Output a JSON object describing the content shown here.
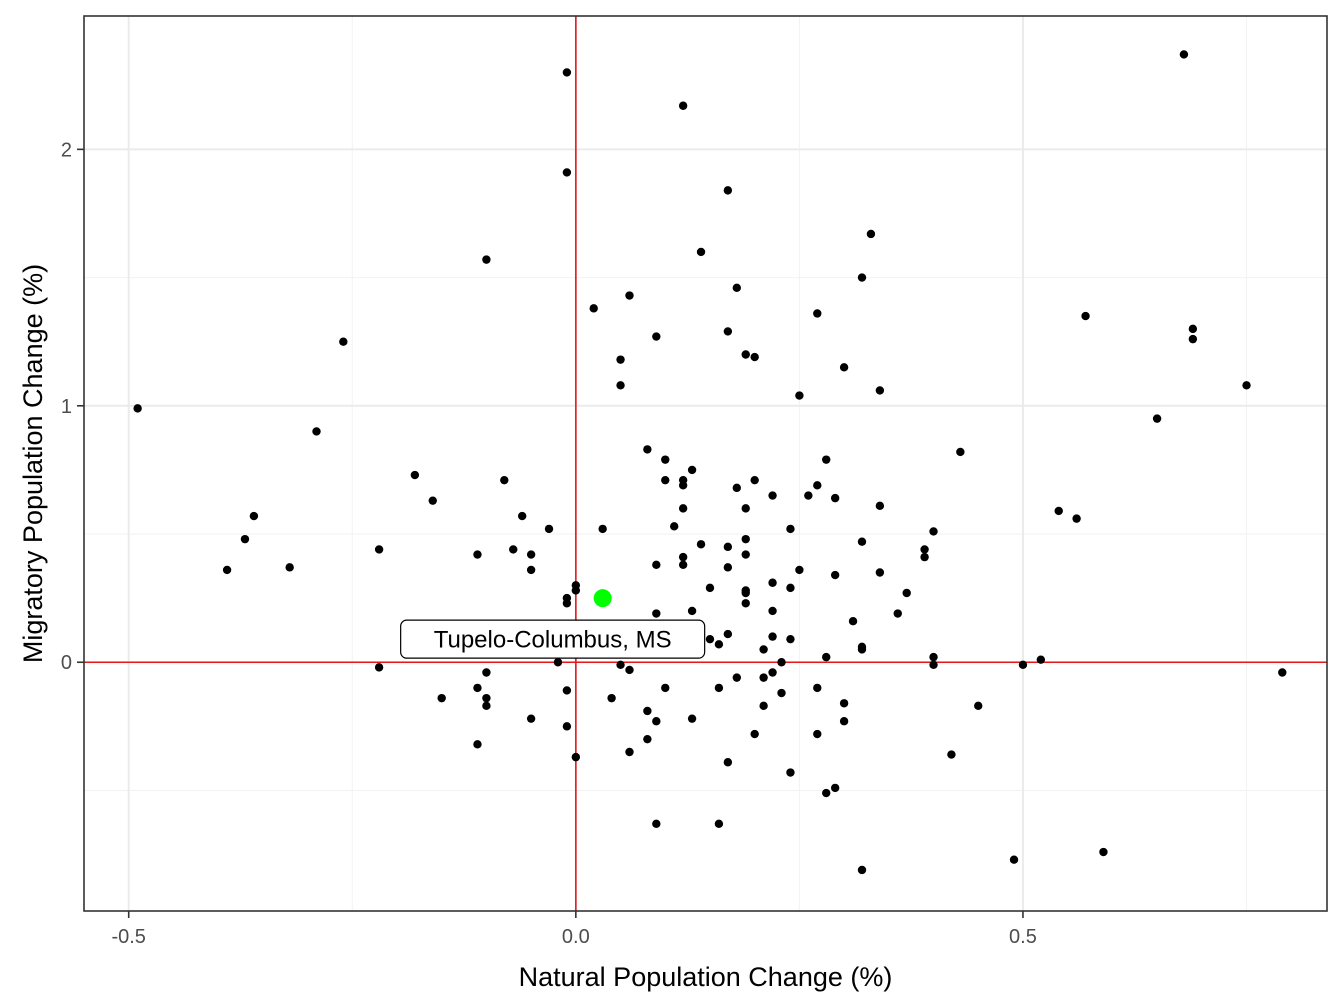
{
  "chart_data": {
    "type": "scatter",
    "title": "",
    "xlabel": "Natural Population Change (%)",
    "ylabel": "Migratory Population Change (%)",
    "xlim": [
      -0.55,
      0.84
    ],
    "ylim": [
      -0.97,
      2.52
    ],
    "x_ticks": [
      -0.5,
      0.0,
      0.5
    ],
    "x_tick_labels": [
      "-0.5",
      "0.0",
      "0.5"
    ],
    "y_ticks": [
      0,
      1,
      2
    ],
    "y_tick_labels": [
      "0",
      "1",
      "2"
    ],
    "x_minor_ticks": [
      -0.25,
      0.25,
      0.75
    ],
    "y_minor_ticks": [
      -0.5,
      0.5,
      1.5
    ],
    "grid": true,
    "reference_lines": {
      "x": 0,
      "y": 0,
      "color": "#e41a1c"
    },
    "point_color": "#000000",
    "highlight": {
      "label": "Tupelo-Columbus, MS",
      "x": 0.03,
      "y": 0.25,
      "color": "#00ff00"
    },
    "points": [
      {
        "x": -0.49,
        "y": 0.99
      },
      {
        "x": -0.26,
        "y": 1.25
      },
      {
        "x": -0.29,
        "y": 0.9
      },
      {
        "x": -0.39,
        "y": 0.36
      },
      {
        "x": -0.37,
        "y": 0.48
      },
      {
        "x": -0.36,
        "y": 0.57
      },
      {
        "x": -0.32,
        "y": 0.37
      },
      {
        "x": -0.22,
        "y": 0.44
      },
      {
        "x": -0.22,
        "y": -0.02
      },
      {
        "x": -0.18,
        "y": 0.73
      },
      {
        "x": -0.16,
        "y": 0.63
      },
      {
        "x": -0.15,
        "y": -0.14
      },
      {
        "x": -0.19,
        "y": 0.03
      },
      {
        "x": -0.1,
        "y": 1.57
      },
      {
        "x": -0.11,
        "y": 0.42
      },
      {
        "x": -0.11,
        "y": -0.1
      },
      {
        "x": -0.1,
        "y": -0.04
      },
      {
        "x": -0.1,
        "y": -0.14
      },
      {
        "x": -0.1,
        "y": -0.17
      },
      {
        "x": -0.11,
        "y": -0.32
      },
      {
        "x": -0.08,
        "y": 0.71
      },
      {
        "x": -0.07,
        "y": 0.44
      },
      {
        "x": -0.06,
        "y": 0.57
      },
      {
        "x": -0.05,
        "y": 0.42
      },
      {
        "x": -0.05,
        "y": 0.36
      },
      {
        "x": -0.05,
        "y": -0.22
      },
      {
        "x": -0.03,
        "y": 0.52
      },
      {
        "x": -0.02,
        "y": 0.0
      },
      {
        "x": -0.01,
        "y": 2.3
      },
      {
        "x": -0.01,
        "y": 1.91
      },
      {
        "x": -0.01,
        "y": 0.25
      },
      {
        "x": -0.01,
        "y": 0.23
      },
      {
        "x": -0.01,
        "y": -0.11
      },
      {
        "x": -0.01,
        "y": -0.25
      },
      {
        "x": 0.0,
        "y": 0.3
      },
      {
        "x": 0.0,
        "y": 0.28
      },
      {
        "x": 0.0,
        "y": -0.37
      },
      {
        "x": 0.02,
        "y": 1.38
      },
      {
        "x": 0.03,
        "y": 0.52
      },
      {
        "x": 0.04,
        "y": -0.14
      },
      {
        "x": 0.05,
        "y": 1.18
      },
      {
        "x": 0.05,
        "y": 1.08
      },
      {
        "x": 0.05,
        "y": -0.01
      },
      {
        "x": 0.06,
        "y": 1.43
      },
      {
        "x": 0.06,
        "y": -0.03
      },
      {
        "x": 0.06,
        "y": -0.35
      },
      {
        "x": 0.08,
        "y": 0.83
      },
      {
        "x": 0.08,
        "y": -0.19
      },
      {
        "x": 0.08,
        "y": -0.3
      },
      {
        "x": 0.09,
        "y": 1.27
      },
      {
        "x": 0.09,
        "y": 0.38
      },
      {
        "x": 0.09,
        "y": 0.19
      },
      {
        "x": 0.09,
        "y": -0.23
      },
      {
        "x": 0.09,
        "y": -0.63
      },
      {
        "x": 0.1,
        "y": 0.79
      },
      {
        "x": 0.1,
        "y": 0.71
      },
      {
        "x": 0.1,
        "y": -0.1
      },
      {
        "x": 0.11,
        "y": 0.53
      },
      {
        "x": 0.12,
        "y": 2.17
      },
      {
        "x": 0.12,
        "y": 0.71
      },
      {
        "x": 0.12,
        "y": 0.69
      },
      {
        "x": 0.12,
        "y": 0.6
      },
      {
        "x": 0.12,
        "y": 0.41
      },
      {
        "x": 0.12,
        "y": 0.38
      },
      {
        "x": 0.13,
        "y": 0.75
      },
      {
        "x": 0.13,
        "y": 0.2
      },
      {
        "x": 0.13,
        "y": -0.22
      },
      {
        "x": 0.14,
        "y": 1.6
      },
      {
        "x": 0.14,
        "y": 0.46
      },
      {
        "x": 0.15,
        "y": 0.29
      },
      {
        "x": 0.15,
        "y": 0.09
      },
      {
        "x": 0.16,
        "y": 0.07
      },
      {
        "x": 0.16,
        "y": -0.1
      },
      {
        "x": 0.16,
        "y": -0.63
      },
      {
        "x": 0.17,
        "y": 1.84
      },
      {
        "x": 0.17,
        "y": 1.29
      },
      {
        "x": 0.17,
        "y": 0.45
      },
      {
        "x": 0.17,
        "y": 0.37
      },
      {
        "x": 0.17,
        "y": 0.11
      },
      {
        "x": 0.17,
        "y": -0.39
      },
      {
        "x": 0.18,
        "y": 1.46
      },
      {
        "x": 0.18,
        "y": 0.68
      },
      {
        "x": 0.18,
        "y": -0.06
      },
      {
        "x": 0.19,
        "y": 1.2
      },
      {
        "x": 0.19,
        "y": 0.6
      },
      {
        "x": 0.19,
        "y": 0.48
      },
      {
        "x": 0.19,
        "y": 0.42
      },
      {
        "x": 0.19,
        "y": 0.28
      },
      {
        "x": 0.19,
        "y": 0.27
      },
      {
        "x": 0.19,
        "y": 0.23
      },
      {
        "x": 0.2,
        "y": 1.19
      },
      {
        "x": 0.2,
        "y": 0.71
      },
      {
        "x": 0.2,
        "y": -0.28
      },
      {
        "x": 0.21,
        "y": 0.05
      },
      {
        "x": 0.21,
        "y": -0.06
      },
      {
        "x": 0.21,
        "y": -0.17
      },
      {
        "x": 0.22,
        "y": 0.65
      },
      {
        "x": 0.22,
        "y": 0.31
      },
      {
        "x": 0.22,
        "y": 0.2
      },
      {
        "x": 0.22,
        "y": 0.1
      },
      {
        "x": 0.22,
        "y": -0.04
      },
      {
        "x": 0.23,
        "y": 0.0
      },
      {
        "x": 0.23,
        "y": -0.12
      },
      {
        "x": 0.24,
        "y": 0.52
      },
      {
        "x": 0.24,
        "y": 0.29
      },
      {
        "x": 0.24,
        "y": 0.09
      },
      {
        "x": 0.24,
        "y": -0.43
      },
      {
        "x": 0.25,
        "y": 1.04
      },
      {
        "x": 0.25,
        "y": 0.36
      },
      {
        "x": 0.26,
        "y": 0.65
      },
      {
        "x": 0.27,
        "y": 1.36
      },
      {
        "x": 0.27,
        "y": 0.69
      },
      {
        "x": 0.27,
        "y": -0.1
      },
      {
        "x": 0.27,
        "y": -0.28
      },
      {
        "x": 0.28,
        "y": 0.79
      },
      {
        "x": 0.28,
        "y": 0.02
      },
      {
        "x": 0.28,
        "y": -0.51
      },
      {
        "x": 0.29,
        "y": 0.64
      },
      {
        "x": 0.29,
        "y": 0.34
      },
      {
        "x": 0.29,
        "y": -0.49
      },
      {
        "x": 0.3,
        "y": 1.15
      },
      {
        "x": 0.3,
        "y": -0.16
      },
      {
        "x": 0.3,
        "y": -0.23
      },
      {
        "x": 0.31,
        "y": 0.16
      },
      {
        "x": 0.32,
        "y": 1.5
      },
      {
        "x": 0.32,
        "y": 0.47
      },
      {
        "x": 0.32,
        "y": 0.06
      },
      {
        "x": 0.32,
        "y": 0.05
      },
      {
        "x": 0.32,
        "y": -0.81
      },
      {
        "x": 0.33,
        "y": 1.67
      },
      {
        "x": 0.34,
        "y": 1.06
      },
      {
        "x": 0.34,
        "y": 0.61
      },
      {
        "x": 0.34,
        "y": 0.35
      },
      {
        "x": 0.36,
        "y": 0.19
      },
      {
        "x": 0.37,
        "y": 0.27
      },
      {
        "x": 0.39,
        "y": 0.44
      },
      {
        "x": 0.39,
        "y": 0.41
      },
      {
        "x": 0.4,
        "y": 0.51
      },
      {
        "x": 0.4,
        "y": 0.02
      },
      {
        "x": 0.4,
        "y": -0.01
      },
      {
        "x": 0.42,
        "y": -0.36
      },
      {
        "x": 0.43,
        "y": 0.82
      },
      {
        "x": 0.45,
        "y": -0.17
      },
      {
        "x": 0.49,
        "y": -0.77
      },
      {
        "x": 0.5,
        "y": -0.01
      },
      {
        "x": 0.52,
        "y": 0.01
      },
      {
        "x": 0.54,
        "y": 0.59
      },
      {
        "x": 0.56,
        "y": 0.56
      },
      {
        "x": 0.57,
        "y": 1.35
      },
      {
        "x": 0.59,
        "y": -0.74
      },
      {
        "x": 0.65,
        "y": 0.95
      },
      {
        "x": 0.68,
        "y": 2.37
      },
      {
        "x": 0.69,
        "y": 1.3
      },
      {
        "x": 0.69,
        "y": 1.26
      },
      {
        "x": 0.75,
        "y": 1.08
      },
      {
        "x": 0.79,
        "y": -0.04
      }
    ]
  }
}
